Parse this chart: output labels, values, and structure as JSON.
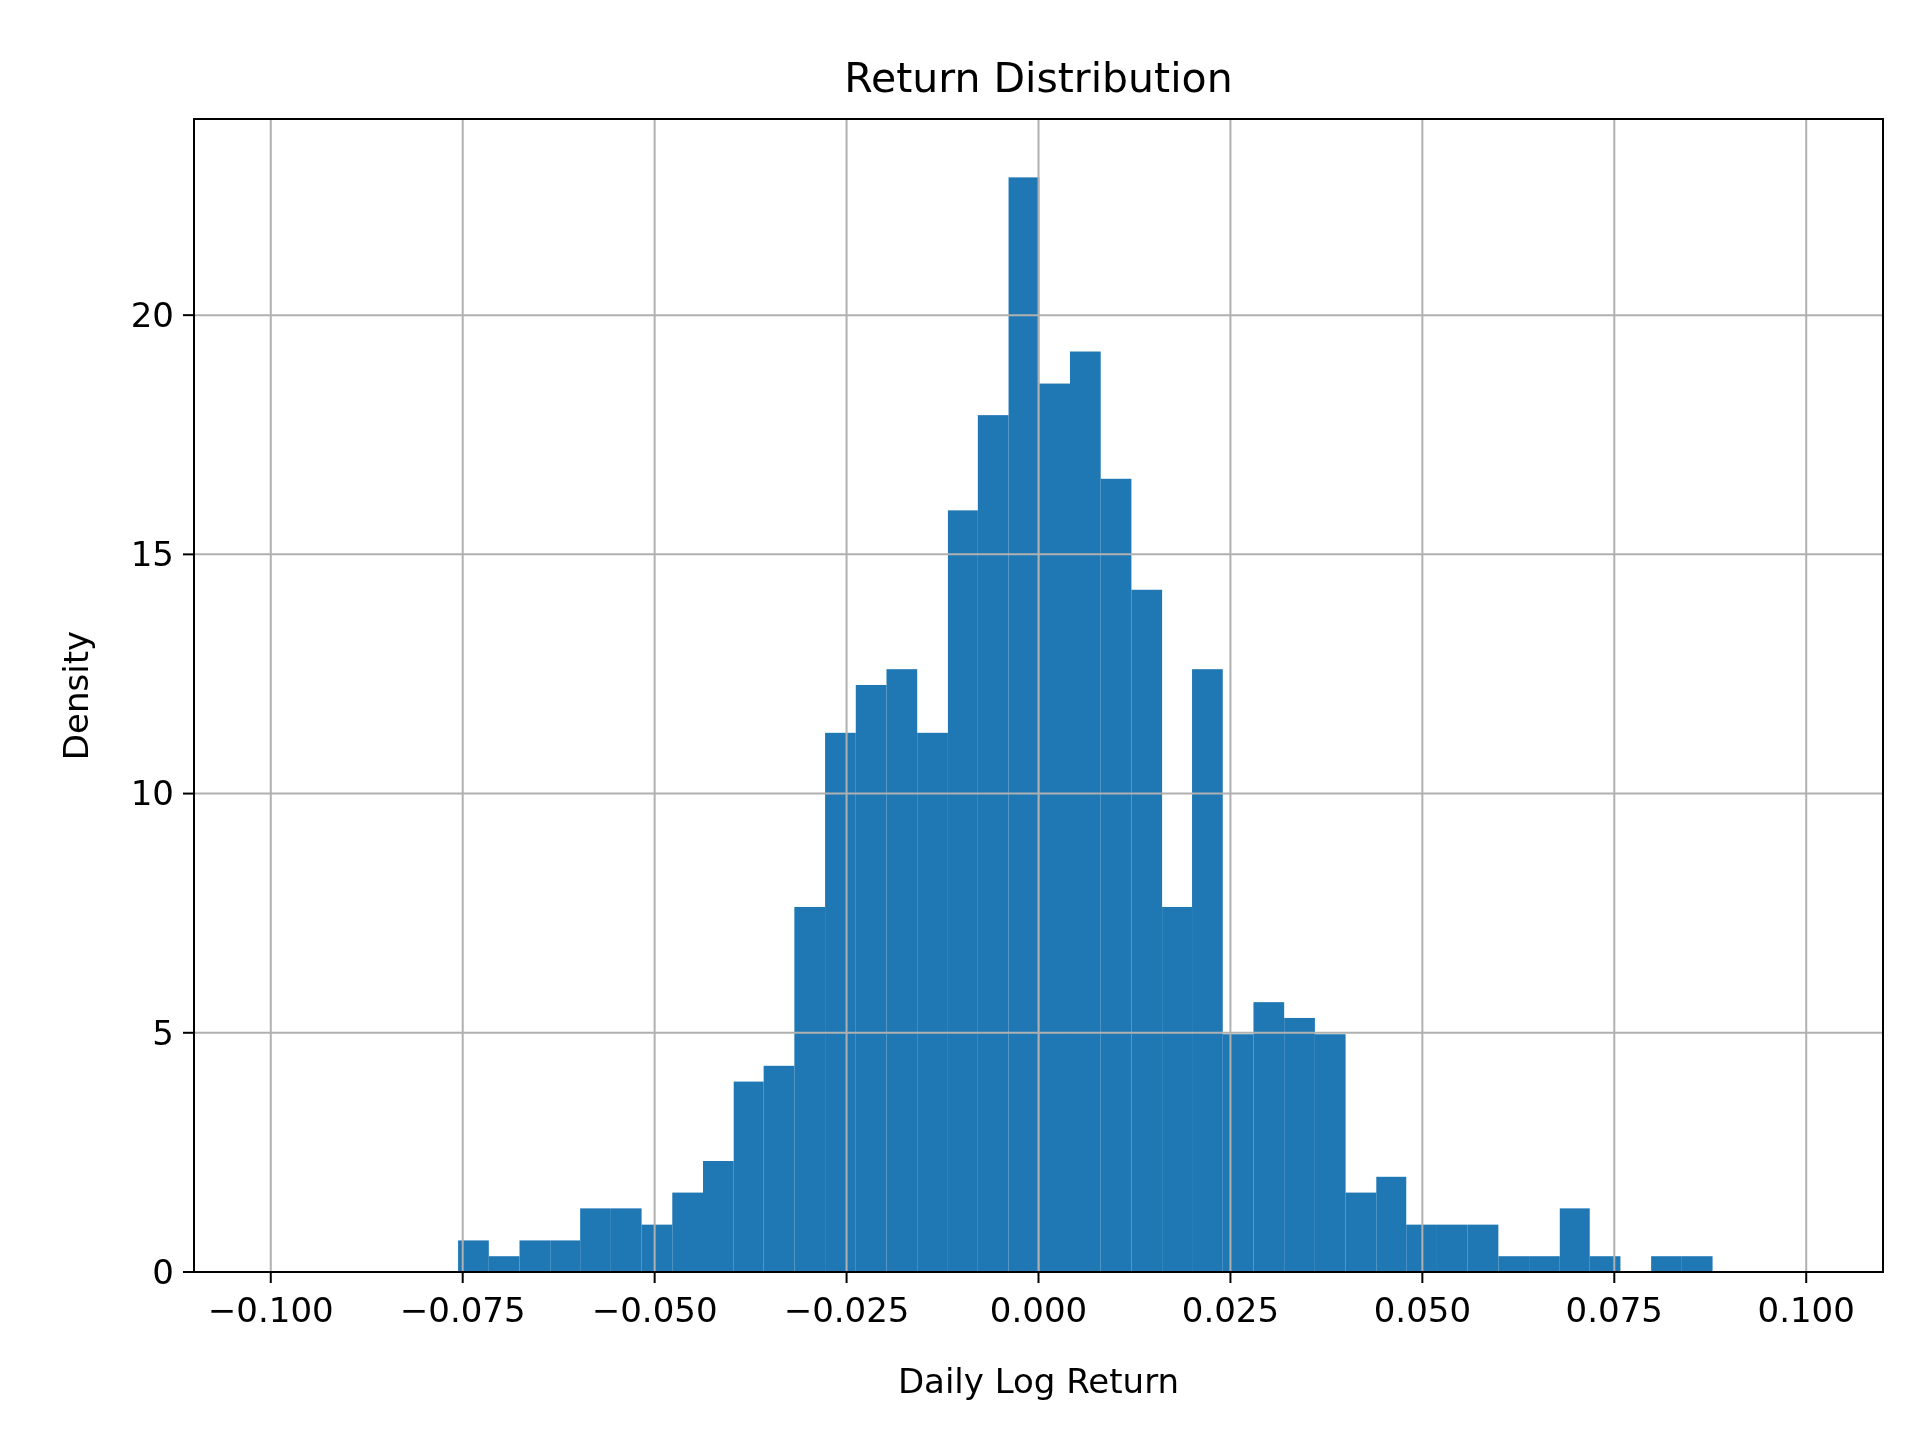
{
  "chart_data": {
    "type": "histogram",
    "title": "Return Distribution",
    "xlabel": "Daily Log Return",
    "ylabel": "Density",
    "bins": [
      -0.0756,
      -0.0716,
      -0.0676,
      -0.0636,
      -0.0597,
      -0.0557,
      -0.0517,
      -0.0477,
      -0.0437,
      -0.0397,
      -0.0358,
      -0.0318,
      -0.0278,
      -0.0238,
      -0.0198,
      -0.0158,
      -0.0118,
      -0.0079,
      -0.0039,
      0.0001,
      0.0041,
      0.0081,
      0.0121,
      0.0161,
      0.02,
      0.024,
      0.028,
      0.032,
      0.036,
      0.04,
      0.044,
      0.0479,
      0.0519,
      0.0559,
      0.0599,
      0.0639,
      0.0679,
      0.0718,
      0.0758,
      0.0798,
      0.0838,
      0.0878
    ],
    "values": [
      0.66,
      0.33,
      0.66,
      0.66,
      1.33,
      1.33,
      0.99,
      1.66,
      2.32,
      3.98,
      4.31,
      7.63,
      11.27,
      12.27,
      12.6,
      11.27,
      15.92,
      17.91,
      22.88,
      18.57,
      19.24,
      16.58,
      14.26,
      7.63,
      12.6,
      4.97,
      5.64,
      5.31,
      4.97,
      1.66,
      1.99,
      0.99,
      0.99,
      0.99,
      0.33,
      0.33,
      1.33,
      0.33,
      0,
      0.33,
      0.33
    ],
    "color": "#1f77b4",
    "xlim": [
      -0.11,
      0.11
    ],
    "xticks": [
      {
        "value": -0.1,
        "label": "−0.100"
      },
      {
        "value": -0.075,
        "label": "−0.075"
      },
      {
        "value": -0.05,
        "label": "−0.050"
      },
      {
        "value": -0.025,
        "label": "−0.025"
      },
      {
        "value": 0,
        "label": "0.000"
      },
      {
        "value": 0.025,
        "label": "0.025"
      },
      {
        "value": 0.05,
        "label": "0.050"
      },
      {
        "value": 0.075,
        "label": "0.075"
      },
      {
        "value": 0.1,
        "label": "0.100"
      }
    ],
    "ylim": [
      0,
      24.1
    ],
    "yticks": [
      0,
      5,
      10,
      15,
      20
    ],
    "grid": true
  }
}
